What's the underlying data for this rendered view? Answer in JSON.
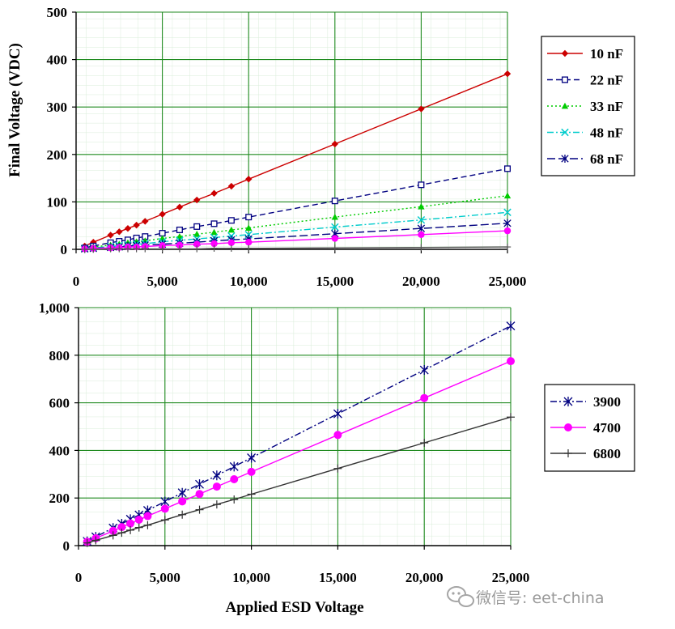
{
  "chart_data": [
    {
      "type": "line",
      "ylabel": "Final Voltage (VDC)",
      "xlabel": "",
      "xlim": [
        0,
        25000
      ],
      "ylim": [
        0,
        500
      ],
      "x_ticks": [
        0,
        5000,
        10000,
        15000,
        20000,
        25000
      ],
      "x_tick_labels": [
        "0",
        "5,000",
        "10,000",
        "15,000",
        "20,000",
        "25,000"
      ],
      "y_ticks": [
        0,
        100,
        200,
        300,
        400,
        500
      ],
      "y_tick_labels": [
        "0",
        "100",
        "200",
        "300",
        "400",
        "500"
      ],
      "grid": true,
      "legend_position": "right",
      "series": [
        {
          "name": "10 nF",
          "color": "#cc0000",
          "marker": "diamond",
          "dash": "solid",
          "x": [
            500,
            1000,
            2000,
            2500,
            3000,
            3500,
            4000,
            5000,
            6000,
            7000,
            8000,
            9000,
            10000,
            15000,
            20000,
            25000
          ],
          "y": [
            7,
            15,
            30,
            37,
            44,
            51,
            59,
            74,
            89,
            104,
            118,
            133,
            148,
            222,
            296,
            370
          ]
        },
        {
          "name": "22 nF",
          "color": "#000080",
          "marker": "square",
          "dash": "dash",
          "x": [
            500,
            1000,
            2000,
            2500,
            3000,
            3500,
            4000,
            5000,
            6000,
            7000,
            8000,
            9000,
            10000,
            15000,
            20000,
            25000
          ],
          "y": [
            3,
            7,
            14,
            17,
            20,
            24,
            27,
            34,
            41,
            48,
            54,
            61,
            68,
            102,
            136,
            170
          ]
        },
        {
          "name": "33 nF",
          "color": "#00cc00",
          "marker": "triangle",
          "dash": "dot",
          "x": [
            500,
            1000,
            2000,
            2500,
            3000,
            3500,
            4000,
            5000,
            6000,
            7000,
            8000,
            9000,
            10000,
            15000,
            20000,
            25000
          ],
          "y": [
            2,
            5,
            9,
            11,
            14,
            16,
            18,
            23,
            27,
            32,
            36,
            41,
            45,
            68,
            90,
            113
          ]
        },
        {
          "name": "48 nF",
          "color": "#00cccc",
          "marker": "x",
          "dash": "dashdot",
          "x": [
            500,
            1000,
            2000,
            2500,
            3000,
            3500,
            4000,
            5000,
            6000,
            7000,
            8000,
            9000,
            10000,
            15000,
            20000,
            25000
          ],
          "y": [
            2,
            3,
            6,
            8,
            9,
            11,
            12,
            16,
            19,
            22,
            25,
            28,
            31,
            47,
            62,
            78
          ]
        },
        {
          "name": "68 nF",
          "color": "#000080",
          "marker": "asterisk",
          "dash": "longdash",
          "x": [
            500,
            1000,
            2000,
            2500,
            3000,
            3500,
            4000,
            5000,
            6000,
            7000,
            8000,
            9000,
            10000,
            15000,
            20000,
            25000
          ],
          "y": [
            1,
            2,
            4,
            5,
            7,
            8,
            9,
            11,
            13,
            15,
            18,
            20,
            22,
            33,
            44,
            55
          ]
        },
        {
          "name": "",
          "color": "#ff00ff",
          "marker": "circle",
          "dash": "solid",
          "x": [
            500,
            1000,
            2000,
            2500,
            3000,
            3500,
            4000,
            5000,
            6000,
            7000,
            8000,
            9000,
            10000,
            15000,
            20000,
            25000
          ],
          "y": [
            1,
            2,
            3,
            4,
            5,
            5,
            6,
            8,
            9,
            11,
            12,
            14,
            15,
            23,
            31,
            39
          ]
        },
        {
          "name": "",
          "color": "#555555",
          "marker": "plus",
          "dash": "solid",
          "x": [
            500,
            1000,
            2000,
            2500,
            3000,
            3500,
            4000,
            5000,
            6000,
            7000,
            8000,
            9000,
            10000,
            15000,
            20000,
            25000
          ],
          "y": [
            0,
            0,
            1,
            1,
            1,
            1,
            1,
            1,
            1,
            1,
            2,
            2,
            2,
            3,
            4,
            5
          ]
        }
      ]
    },
    {
      "type": "line",
      "xlabel": "Applied ESD Voltage",
      "ylabel": "",
      "xlim": [
        0,
        25000
      ],
      "ylim": [
        0,
        1000
      ],
      "x_ticks": [
        0,
        5000,
        10000,
        15000,
        20000,
        25000
      ],
      "x_tick_labels": [
        "0",
        "5,000",
        "10,000",
        "15,000",
        "20,000",
        "25,000"
      ],
      "y_ticks": [
        0,
        200,
        400,
        600,
        800,
        1000
      ],
      "y_tick_labels": [
        "0",
        "200",
        "400",
        "600",
        "800",
        "1,000"
      ],
      "grid": true,
      "legend_position": "right",
      "series": [
        {
          "name": "3900",
          "color": "#000080",
          "marker": "asterisk",
          "dash": "dashdot",
          "x": [
            500,
            1000,
            2000,
            2500,
            3000,
            3500,
            4000,
            5000,
            6000,
            7000,
            8000,
            9000,
            10000,
            15000,
            20000,
            25000
          ],
          "y": [
            18,
            37,
            74,
            92,
            111,
            129,
            148,
            185,
            222,
            258,
            295,
            332,
            369,
            554,
            738,
            923
          ]
        },
        {
          "name": "4700",
          "color": "#ff00ff",
          "marker": "circle",
          "dash": "solid",
          "x": [
            500,
            1000,
            2000,
            2500,
            3000,
            3500,
            4000,
            5000,
            6000,
            7000,
            8000,
            9000,
            10000,
            15000,
            20000,
            25000
          ],
          "y": [
            16,
            31,
            62,
            78,
            93,
            109,
            124,
            155,
            186,
            217,
            248,
            279,
            310,
            465,
            620,
            775
          ]
        },
        {
          "name": "6800",
          "color": "#333333",
          "marker": "plus",
          "dash": "solid",
          "x": [
            500,
            1000,
            2000,
            2500,
            3000,
            3500,
            4000,
            5000,
            6000,
            7000,
            8000,
            9000,
            10000,
            15000,
            20000,
            25000
          ],
          "y": [
            11,
            22,
            43,
            54,
            65,
            76,
            86,
            108,
            130,
            151,
            173,
            194,
            216,
            324,
            432,
            540
          ]
        }
      ]
    }
  ],
  "watermark": {
    "text": "微信号: eet-china",
    "icon": "chat-bubbles-icon"
  }
}
